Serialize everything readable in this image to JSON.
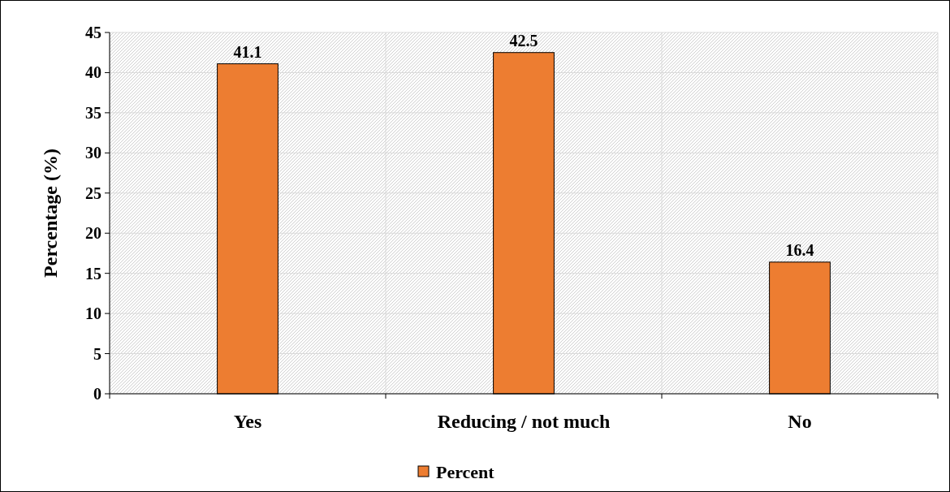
{
  "chart_data": {
    "type": "bar",
    "ylabel": "Percentage (%)",
    "categories": [
      "Yes",
      "Reducing / not much",
      "No"
    ],
    "series": [
      {
        "name": "Percent",
        "color": "#ed7d31",
        "values": [
          41.1,
          42.5,
          16.4
        ]
      }
    ],
    "ylim": [
      0,
      45
    ],
    "yticks": [
      0,
      5,
      10,
      15,
      20,
      25,
      30,
      35,
      40,
      45
    ],
    "grid": true,
    "legend": "bottom",
    "data_labels": true
  }
}
